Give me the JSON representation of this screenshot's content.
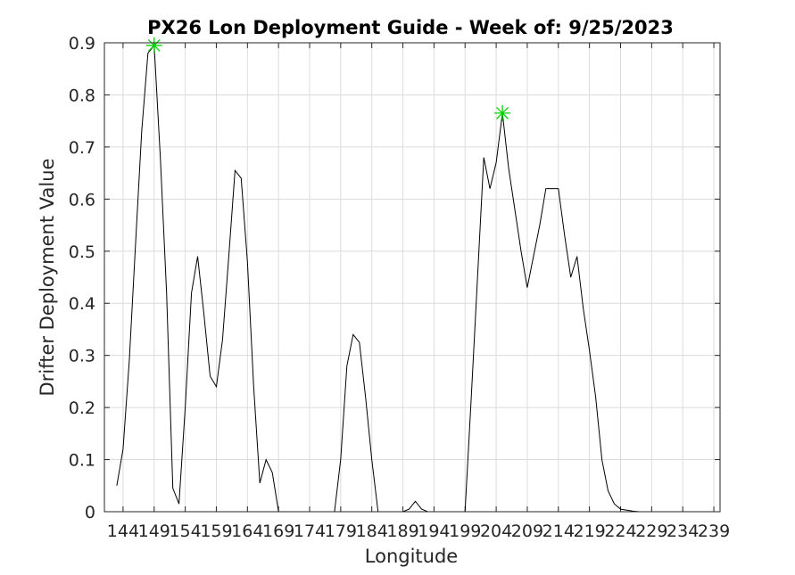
{
  "chart_data": {
    "type": "line",
    "title": "PX26 Lon Deployment Guide - Week of: 9/25/2023",
    "xlabel": "Longitude",
    "ylabel": "Drifter Deployment Value",
    "xlim": [
      141,
      240
    ],
    "ylim": [
      0,
      0.9
    ],
    "xticks": [
      144,
      149,
      154,
      159,
      164,
      169,
      174,
      179,
      184,
      189,
      194,
      199,
      204,
      209,
      214,
      219,
      224,
      229,
      234,
      239
    ],
    "yticks": [
      0,
      0.1,
      0.2,
      0.3,
      0.4,
      0.5,
      0.6,
      0.7,
      0.8,
      0.9
    ],
    "grid": true,
    "line_color": "#000000",
    "marker_color": "#00d400",
    "series": [
      {
        "x": [
          143,
          144,
          145,
          146,
          147,
          148,
          149,
          150,
          151,
          152,
          153,
          154,
          155,
          156,
          157,
          158,
          159,
          160,
          161,
          162,
          163,
          164,
          165,
          166,
          167,
          168,
          169,
          170,
          171,
          172,
          173,
          174,
          175,
          176,
          177,
          178,
          179,
          180,
          181,
          182,
          183,
          184,
          185,
          186,
          187,
          188,
          189,
          190,
          191,
          192,
          193,
          194,
          195,
          196,
          197,
          198,
          199,
          200,
          201,
          202,
          203,
          204,
          205,
          206,
          207,
          208,
          209,
          210,
          211,
          212,
          213,
          214,
          215,
          216,
          217,
          218,
          219,
          220,
          221,
          222,
          223,
          224,
          225,
          226,
          227,
          228,
          229
        ],
        "values": [
          0.05,
          0.12,
          0.29,
          0.51,
          0.73,
          0.88,
          0.895,
          0.68,
          0.42,
          0.045,
          0.015,
          0.2,
          0.42,
          0.49,
          0.38,
          0.26,
          0.24,
          0.33,
          0.49,
          0.655,
          0.64,
          0.48,
          0.24,
          0.055,
          0.1,
          0.075,
          0.0,
          0.0,
          0.0,
          0.0,
          0.0,
          0.0,
          0.0,
          0.0,
          0.0,
          0.0,
          0.1,
          0.28,
          0.34,
          0.325,
          0.22,
          0.1,
          0.0,
          0.0,
          0.0,
          0.0,
          0.0,
          0.005,
          0.02,
          0.005,
          0.0,
          0.0,
          0.0,
          0.0,
          0.0,
          0.0,
          0.0,
          0.22,
          0.45,
          0.68,
          0.62,
          0.67,
          0.765,
          0.66,
          0.58,
          0.5,
          0.43,
          0.49,
          0.55,
          0.62,
          0.62,
          0.62,
          0.53,
          0.45,
          0.49,
          0.39,
          0.31,
          0.22,
          0.1,
          0.04,
          0.015,
          0.005,
          0.003,
          0.001,
          0.0,
          0.0,
          0.0
        ]
      }
    ],
    "markers": [
      {
        "x": 149,
        "y": 0.895
      },
      {
        "x": 205,
        "y": 0.765
      }
    ]
  }
}
